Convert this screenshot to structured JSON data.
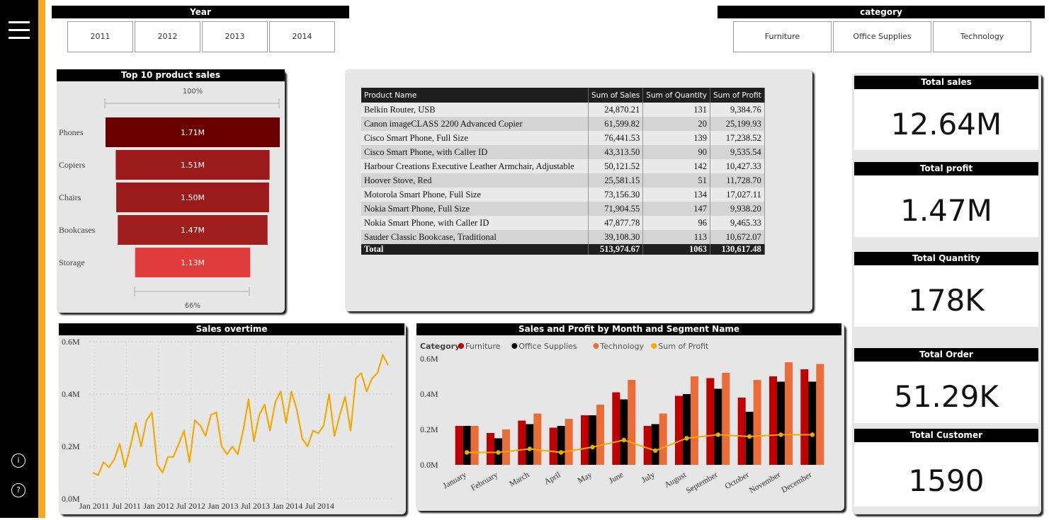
{
  "slicers": {
    "year": {
      "title": "Year",
      "options": [
        "2011",
        "2012",
        "2013",
        "2014"
      ]
    },
    "category": {
      "title": "category",
      "options": [
        "Furniture",
        "Office Supplies",
        "Technology"
      ]
    }
  },
  "funnel": {
    "title": "Top 10 product sales",
    "top_pct": "100%",
    "bottom_pct": "66%"
  },
  "table": {
    "headers": [
      "Product Name",
      "Sum of Sales",
      "Sum of Quantity",
      "Sum of Profit"
    ],
    "rows": [
      {
        "name": "Belkin Router, USB",
        "sales": "24,870.21",
        "qty": "131",
        "profit": "9,384.76"
      },
      {
        "name": "Canon imageCLASS 2200 Advanced Copier",
        "sales": "61,599.82",
        "qty": "20",
        "profit": "25,199.93"
      },
      {
        "name": "Cisco Smart Phone, Full Size",
        "sales": "76,441.53",
        "qty": "139",
        "profit": "17,238.52"
      },
      {
        "name": "Cisco Smart Phone, with Caller ID",
        "sales": "43,313.50",
        "qty": "90",
        "profit": "9,535.54"
      },
      {
        "name": "Harbour Creations Executive Leather Armchair, Adjustable",
        "sales": "50,121.52",
        "qty": "142",
        "profit": "10,427.33"
      },
      {
        "name": "Hoover Stove, Red",
        "sales": "25,581.15",
        "qty": "51",
        "profit": "11,728.70"
      },
      {
        "name": "Motorola Smart Phone, Full Size",
        "sales": "73,156.30",
        "qty": "134",
        "profit": "17,027.11"
      },
      {
        "name": "Nokia Smart Phone, Full Size",
        "sales": "71,904.55",
        "qty": "147",
        "profit": "9,938.20"
      },
      {
        "name": "Nokia Smart Phone, with Caller ID",
        "sales": "47,877.78",
        "qty": "96",
        "profit": "9,465.33"
      },
      {
        "name": "Sauder Classic Bookcase, Traditional",
        "sales": "39,108.30",
        "qty": "113",
        "profit": "10,672.07"
      }
    ],
    "total": {
      "label": "Total",
      "sales": "513,974.67",
      "qty": "1063",
      "profit": "130,617.48"
    }
  },
  "kpis": [
    {
      "title": "Total sales",
      "value": "12.64M"
    },
    {
      "title": "Total profit",
      "value": "1.47M"
    },
    {
      "title": "Total Quantity",
      "value": "178K"
    },
    {
      "title": "Total Order",
      "value": "51.29K"
    },
    {
      "title": "Total Customer",
      "value": "1590"
    }
  ],
  "sidebar": {
    "info_glyph": "i",
    "help_glyph": "?"
  },
  "chart_data": [
    {
      "type": "funnel",
      "title": "Top 10 product sales",
      "categories": [
        "Phones",
        "Copiers",
        "Chairs",
        "Bookcases",
        "Storage"
      ],
      "values": [
        1.71,
        1.51,
        1.5,
        1.47,
        1.13
      ],
      "labels": [
        "1.71M",
        "1.51M",
        "1.50M",
        "1.47M",
        "1.13M"
      ],
      "colors": [
        "#6b0000",
        "#9b1b1b",
        "#9b1b1b",
        "#a01d1d",
        "#e03c3c"
      ]
    },
    {
      "type": "line",
      "title": "Sales overtime",
      "x_tick_labels": [
        "Jan 2011",
        "Jul 2011",
        "Jan 2012",
        "Jul 2012",
        "Jan 2013",
        "Jul 2013",
        "Jan 2014",
        "Jul 2014"
      ],
      "y_tick_labels": [
        "0.6M",
        "0.4M",
        "0.2M",
        "0.0M"
      ],
      "ylim": [
        0,
        0.6
      ],
      "color": "#f2a900",
      "values": [
        0.1,
        0.09,
        0.14,
        0.12,
        0.15,
        0.21,
        0.12,
        0.2,
        0.29,
        0.2,
        0.3,
        0.33,
        0.13,
        0.1,
        0.16,
        0.16,
        0.21,
        0.26,
        0.14,
        0.3,
        0.28,
        0.24,
        0.32,
        0.33,
        0.2,
        0.17,
        0.2,
        0.17,
        0.26,
        0.38,
        0.22,
        0.32,
        0.36,
        0.26,
        0.37,
        0.41,
        0.29,
        0.41,
        0.34,
        0.23,
        0.2,
        0.26,
        0.25,
        0.28,
        0.4,
        0.24,
        0.32,
        0.39,
        0.26,
        0.46,
        0.48,
        0.41,
        0.46,
        0.48,
        0.55,
        0.51
      ],
      "note": "Series read approximately; first and last points trimmed to the chart window"
    },
    {
      "type": "bar+line",
      "title": "Sales and Profit by Month and Segment Name",
      "legend_title": "Category",
      "categories": [
        "January",
        "February",
        "March",
        "April",
        "May",
        "June",
        "July",
        "August",
        "September",
        "October",
        "November",
        "December"
      ],
      "y_tick_labels": [
        "0.6M",
        "0.4M",
        "0.2M",
        "0.0M"
      ],
      "ylim": [
        0,
        0.6
      ],
      "series": [
        {
          "name": "Furniture",
          "color": "#c00000",
          "values": [
            0.22,
            0.18,
            0.25,
            0.21,
            0.28,
            0.41,
            0.22,
            0.39,
            0.49,
            0.38,
            0.5,
            0.54
          ]
        },
        {
          "name": "Office Supplies",
          "color": "#000000",
          "values": [
            0.22,
            0.15,
            0.23,
            0.22,
            0.28,
            0.37,
            0.23,
            0.4,
            0.43,
            0.3,
            0.47,
            0.47
          ]
        },
        {
          "name": "Technology",
          "color": "#ea6d38",
          "values": [
            0.22,
            0.2,
            0.29,
            0.26,
            0.34,
            0.48,
            0.29,
            0.5,
            0.52,
            0.48,
            0.58,
            0.57
          ]
        },
        {
          "name": "Sum of Profit",
          "type": "line",
          "color": "#f2a900",
          "values": [
            0.07,
            0.07,
            0.09,
            0.07,
            0.1,
            0.14,
            0.08,
            0.15,
            0.17,
            0.16,
            0.17,
            0.17
          ]
        }
      ]
    }
  ]
}
